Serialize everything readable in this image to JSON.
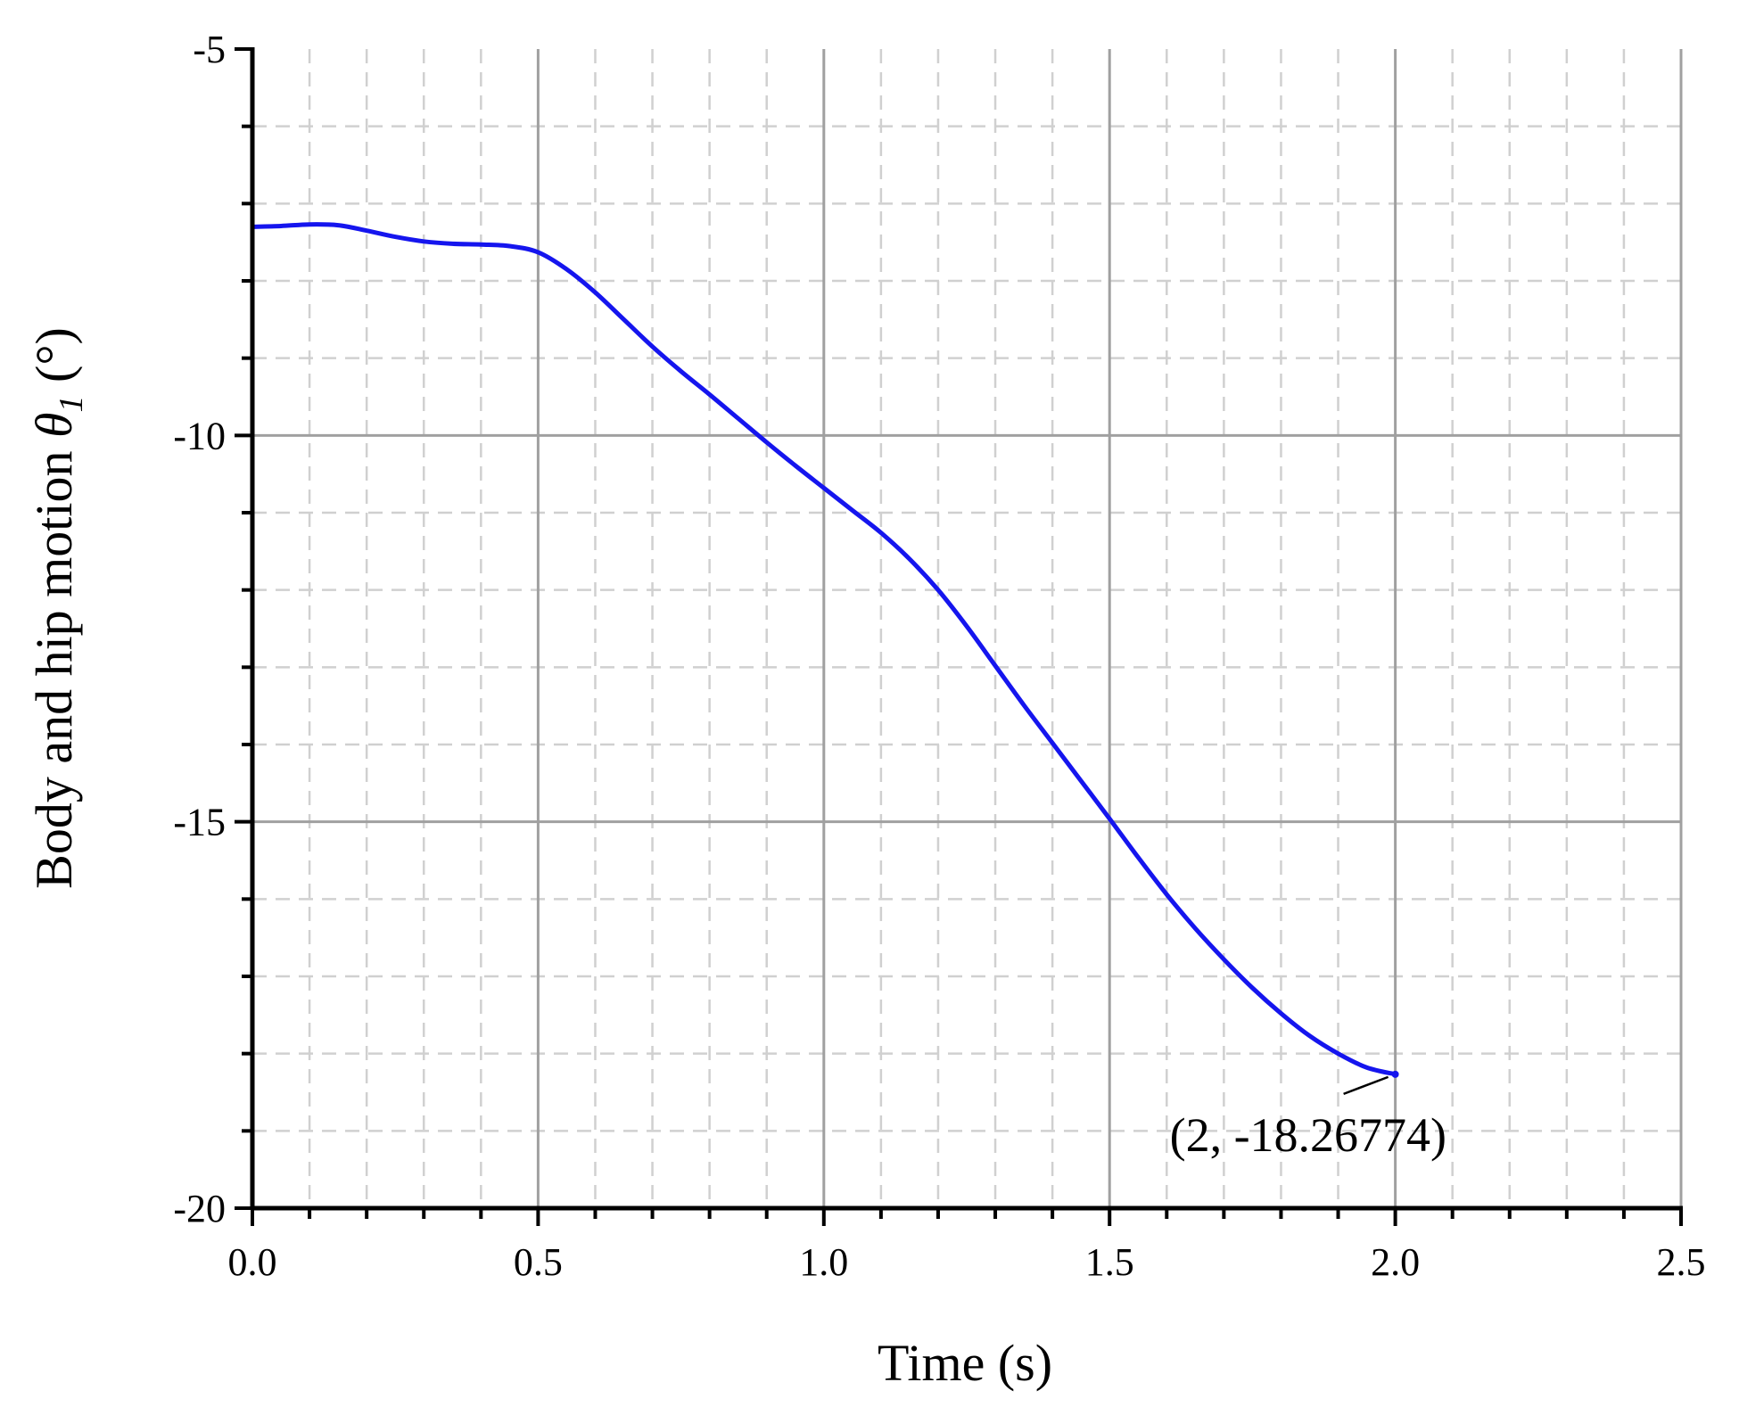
{
  "chart_data": {
    "type": "line",
    "xlabel": "Time (s)",
    "ylabel_text": "Body and hip motion ",
    "ylabel_symbol": "θ",
    "ylabel_subscript": "1",
    "ylabel_unit": " (°)",
    "xlim": [
      0.0,
      2.5
    ],
    "ylim": [
      -20,
      -5
    ],
    "x_ticks": [
      0.0,
      0.5,
      1.0,
      1.5,
      2.0,
      2.5
    ],
    "x_tick_labels": [
      "0.0",
      "0.5",
      "1.0",
      "1.5",
      "2.0",
      "2.5"
    ],
    "x_minor_step": 0.1,
    "y_ticks": [
      -5,
      -10,
      -15,
      -20
    ],
    "y_tick_labels": [
      "-5",
      "-10",
      "-15",
      "-20"
    ],
    "y_minor_step": 1,
    "grid": true,
    "legend": false,
    "colors": {
      "series": "#1515ee",
      "grid_major": "#a0a0a0",
      "grid_minor": "#d0d0d0"
    },
    "series": [
      {
        "x": [
          0.0,
          0.05,
          0.1,
          0.15,
          0.2,
          0.25,
          0.3,
          0.35,
          0.4,
          0.45,
          0.5,
          0.55,
          0.6,
          0.65,
          0.7,
          0.75,
          0.8,
          0.85,
          0.9,
          0.95,
          1.0,
          1.05,
          1.1,
          1.15,
          1.2,
          1.25,
          1.3,
          1.35,
          1.4,
          1.45,
          1.5,
          1.55,
          1.6,
          1.65,
          1.7,
          1.75,
          1.8,
          1.85,
          1.9,
          1.95,
          2.0
        ],
        "y": [
          -7.3,
          -7.29,
          -7.27,
          -7.28,
          -7.35,
          -7.43,
          -7.49,
          -7.52,
          -7.53,
          -7.55,
          -7.63,
          -7.85,
          -8.15,
          -8.5,
          -8.85,
          -9.17,
          -9.47,
          -9.78,
          -10.09,
          -10.39,
          -10.68,
          -10.97,
          -11.26,
          -11.6,
          -12.0,
          -12.47,
          -12.98,
          -13.49,
          -13.98,
          -14.47,
          -14.96,
          -15.46,
          -15.94,
          -16.38,
          -16.78,
          -17.15,
          -17.48,
          -17.77,
          -18.0,
          -18.18,
          -18.26774
        ]
      }
    ],
    "annotations": [
      {
        "text": "(2, -18.26774)",
        "x": 2,
        "y": -18.26774
      }
    ]
  }
}
